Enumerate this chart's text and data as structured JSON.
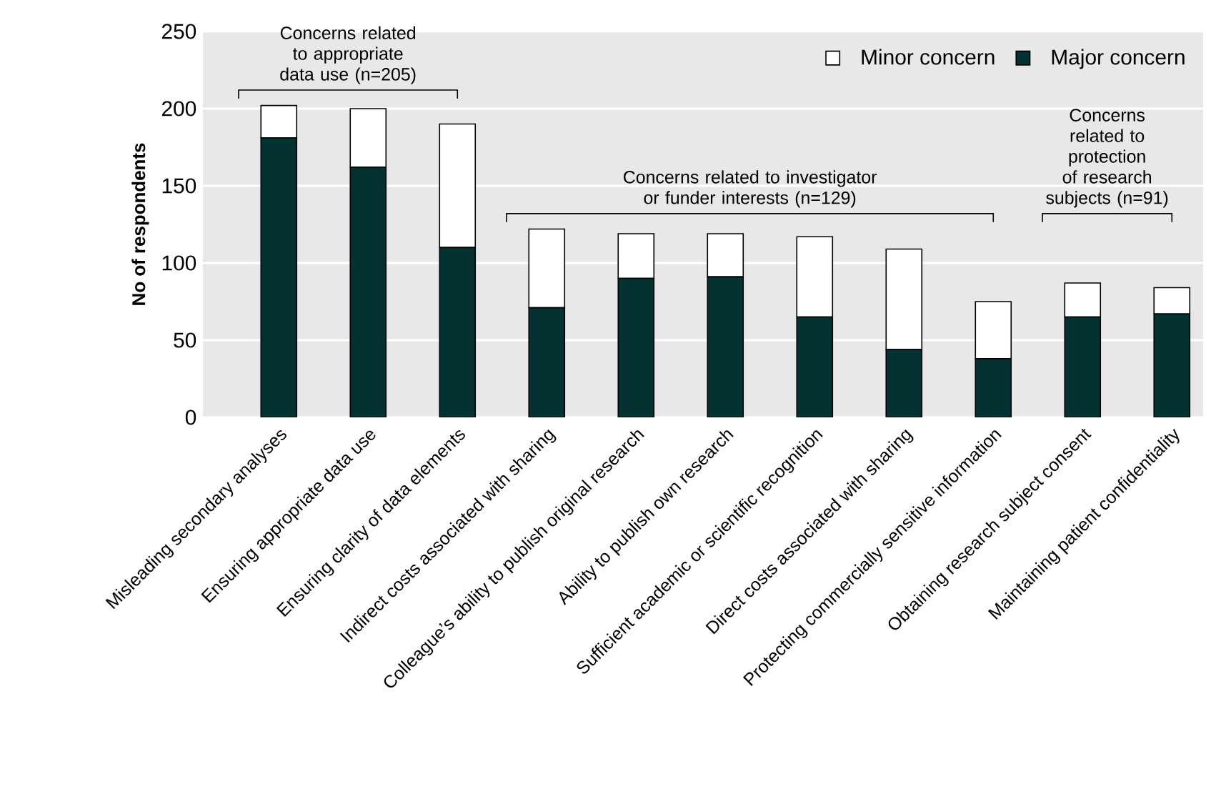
{
  "chart_data": {
    "type": "bar",
    "stacked": true,
    "ylabel": "No of respondents",
    "categories": [
      "Misleading secondary analyses",
      "Ensuring appropriate data use",
      "Ensuring clarity of data elements",
      "Indirect costs associated with sharing",
      "Colleague’s ability to publish original research",
      "Ability to publish own research",
      "Sufficient academic or scientific recognition",
      "Direct costs associated with sharing",
      "Protecting commercially sensitive information",
      "Obtaining research subject consent",
      "Maintaining patient confidentiality"
    ],
    "series": [
      {
        "name": "Major concern",
        "color": "#033231",
        "values": [
          181,
          162,
          110,
          71,
          90,
          91,
          65,
          44,
          38,
          65,
          67
        ]
      },
      {
        "name": "Minor concern",
        "color": "#ffffff",
        "values": [
          21,
          38,
          80,
          51,
          29,
          28,
          52,
          65,
          37,
          22,
          17
        ]
      }
    ],
    "ylim": [
      0,
      250
    ],
    "yticks": [
      0,
      50,
      100,
      150,
      200,
      250
    ],
    "grid": "y",
    "legend": "top right",
    "annotations": [
      "Concerns related to appropriate data use (n=205)",
      "Concerns related to investigator or funder interests (n=129)",
      "Concerns related to protection of research subjects (n=91)"
    ]
  }
}
